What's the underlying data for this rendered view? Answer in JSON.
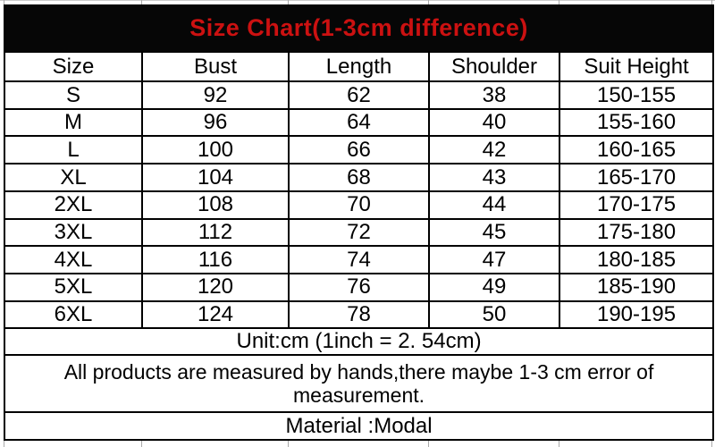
{
  "title": "Size Chart(1-3cm difference)",
  "chart_data": {
    "type": "table",
    "title": "Size Chart(1-3cm difference)",
    "unit": "cm",
    "columns": [
      "Size",
      "Bust",
      "Length",
      "Shoulder",
      "Suit Height"
    ],
    "rows": [
      [
        "S",
        "92",
        "62",
        "38",
        "150-155"
      ],
      [
        "M",
        "96",
        "64",
        "40",
        "155-160"
      ],
      [
        "L",
        "100",
        "66",
        "42",
        "160-165"
      ],
      [
        "XL",
        "104",
        "68",
        "43",
        "165-170"
      ],
      [
        "2XL",
        "108",
        "70",
        "44",
        "170-175"
      ],
      [
        "3XL",
        "112",
        "72",
        "45",
        "175-180"
      ],
      [
        "4XL",
        "116",
        "74",
        "47",
        "180-185"
      ],
      [
        "5XL",
        "120",
        "76",
        "49",
        "185-190"
      ],
      [
        "6XL",
        "124",
        "78",
        "50",
        "190-195"
      ]
    ]
  },
  "footer": {
    "unit_note": "Unit:cm (1inch = 2. 54cm)",
    "measurement_note": "All products are measured by hands,there maybe 1-3 cm error of measurement.",
    "material_note": "Material :Modal"
  },
  "colors": {
    "background": "#ffffff",
    "banner_background": "#060606",
    "title_text": "#cc1111",
    "table_border": "#000000",
    "body_text": "#000000",
    "grid_remnant": "#aaaaaa"
  }
}
